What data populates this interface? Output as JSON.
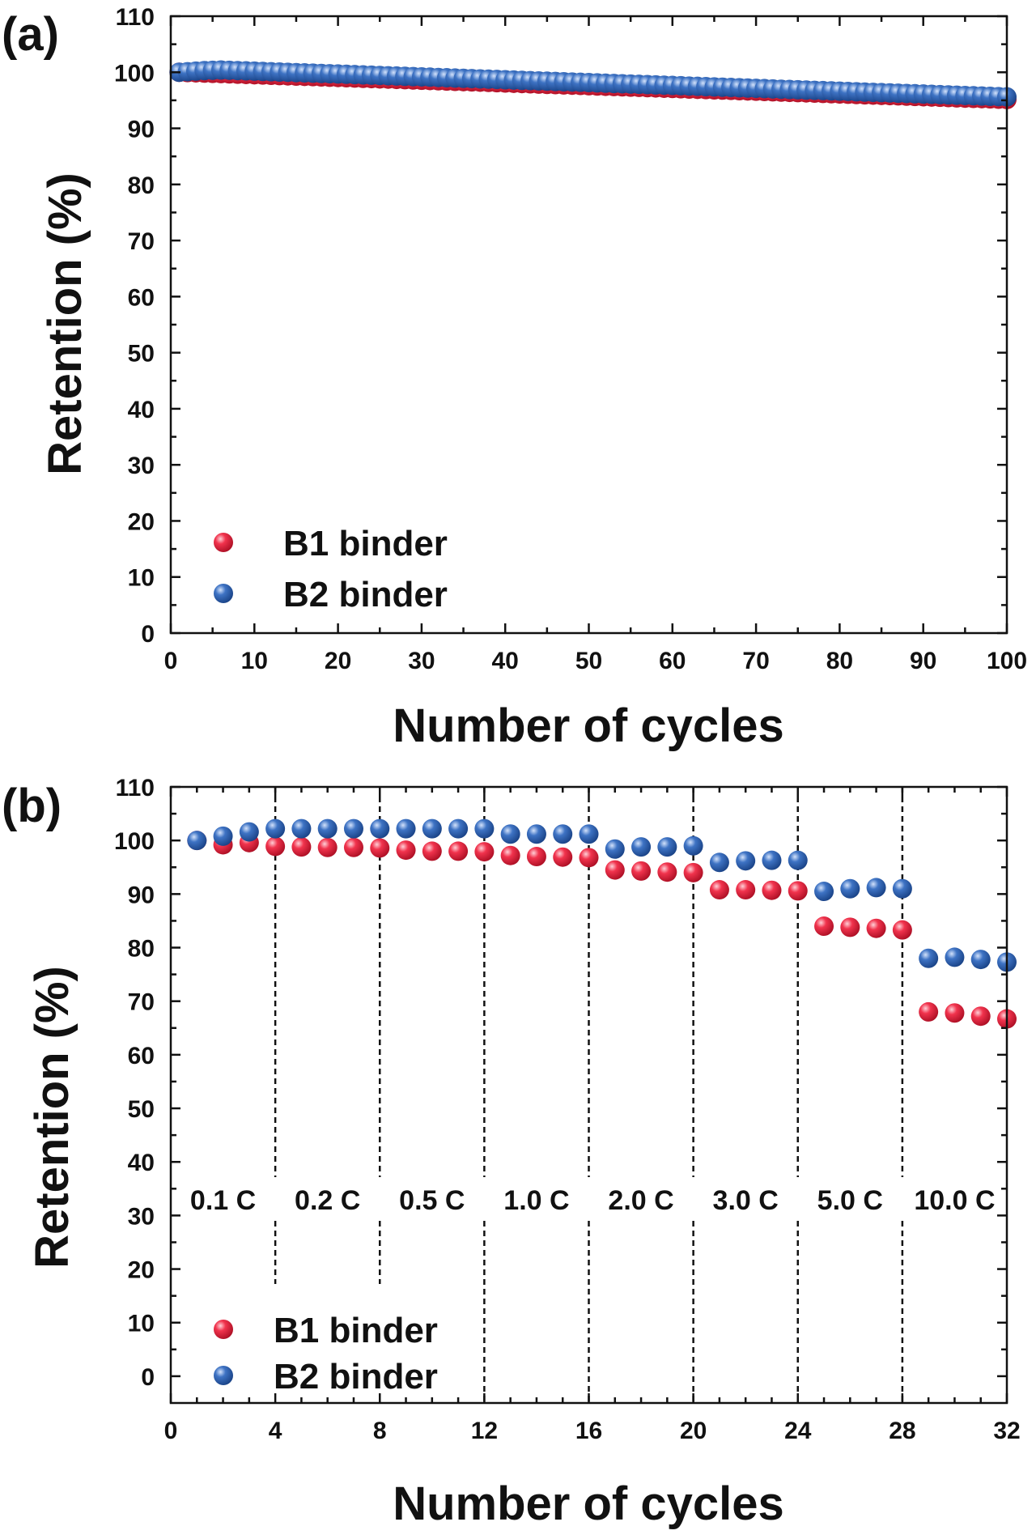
{
  "chart_data": [
    {
      "type": "scatter",
      "panel_label": "(a)",
      "xlabel": "Number of cycles",
      "ylabel": "Retention (%)",
      "xlim": [
        0,
        100
      ],
      "ylim": [
        0,
        110
      ],
      "x_ticks": [
        0,
        10,
        20,
        30,
        40,
        50,
        60,
        70,
        80,
        90,
        100
      ],
      "y_ticks": [
        0,
        10,
        20,
        30,
        40,
        50,
        60,
        70,
        80,
        90,
        100,
        110
      ],
      "legend": "bottom-left",
      "grid": false,
      "series": [
        {
          "name": "B1 binder",
          "color": "#e8253f",
          "x": [
            1,
            2,
            3,
            4,
            5,
            6,
            7,
            8,
            9,
            10,
            11,
            12,
            13,
            14,
            15,
            16,
            17,
            18,
            19,
            20,
            21,
            22,
            23,
            24,
            25,
            26,
            27,
            28,
            29,
            30,
            31,
            32,
            33,
            34,
            35,
            36,
            37,
            38,
            39,
            40,
            41,
            42,
            43,
            44,
            45,
            46,
            47,
            48,
            49,
            50,
            51,
            52,
            53,
            54,
            55,
            56,
            57,
            58,
            59,
            60,
            61,
            62,
            63,
            64,
            65,
            66,
            67,
            68,
            69,
            70,
            71,
            72,
            73,
            74,
            75,
            76,
            77,
            78,
            79,
            80,
            81,
            82,
            83,
            84,
            85,
            86,
            87,
            88,
            89,
            90,
            91,
            92,
            93,
            94,
            95,
            96,
            97,
            98,
            99,
            100
          ],
          "y": [
            100,
            99.95,
            99.9,
            99.85,
            99.8,
            99.76,
            99.71,
            99.66,
            99.61,
            99.56,
            99.51,
            99.46,
            99.41,
            99.36,
            99.31,
            99.27,
            99.22,
            99.17,
            99.12,
            99.07,
            99.02,
            98.97,
            98.92,
            98.87,
            98.82,
            98.78,
            98.73,
            98.68,
            98.63,
            98.58,
            98.53,
            98.48,
            98.43,
            98.38,
            98.33,
            98.29,
            98.24,
            98.19,
            98.14,
            98.09,
            98.04,
            97.99,
            97.94,
            97.89,
            97.84,
            97.8,
            97.75,
            97.7,
            97.65,
            97.6,
            97.55,
            97.5,
            97.45,
            97.4,
            97.35,
            97.31,
            97.26,
            97.21,
            97.16,
            97.11,
            97.06,
            97.01,
            96.96,
            96.91,
            96.86,
            96.82,
            96.77,
            96.72,
            96.67,
            96.62,
            96.57,
            96.52,
            96.47,
            96.42,
            96.37,
            96.33,
            96.28,
            96.23,
            96.18,
            96.13,
            96.08,
            96.03,
            95.98,
            95.93,
            95.88,
            95.84,
            95.79,
            95.74,
            95.69,
            95.64,
            95.59,
            95.54,
            95.49,
            95.44,
            95.39,
            95.35,
            95.3,
            95.25,
            95.2,
            95.15
          ]
        },
        {
          "name": "B2 binder",
          "color": "#2f65b4",
          "x": [
            1,
            2,
            3,
            4,
            5,
            6,
            7,
            8,
            9,
            10,
            11,
            12,
            13,
            14,
            15,
            16,
            17,
            18,
            19,
            20,
            21,
            22,
            23,
            24,
            25,
            26,
            27,
            28,
            29,
            30,
            31,
            32,
            33,
            34,
            35,
            36,
            37,
            38,
            39,
            40,
            41,
            42,
            43,
            44,
            45,
            46,
            47,
            48,
            49,
            50,
            51,
            52,
            53,
            54,
            55,
            56,
            57,
            58,
            59,
            60,
            61,
            62,
            63,
            64,
            65,
            66,
            67,
            68,
            69,
            70,
            71,
            72,
            73,
            74,
            75,
            76,
            77,
            78,
            79,
            80,
            81,
            82,
            83,
            84,
            85,
            86,
            87,
            88,
            89,
            90,
            91,
            92,
            93,
            94,
            95,
            96,
            97,
            98,
            99,
            100
          ],
          "y": [
            100,
            100.1,
            100.2,
            100.3,
            100.35,
            100.4,
            100.35,
            100.3,
            100.25,
            100.2,
            100.15,
            100.09,
            100.04,
            99.99,
            99.94,
            99.89,
            99.84,
            99.79,
            99.74,
            99.69,
            99.64,
            99.58,
            99.53,
            99.48,
            99.43,
            99.38,
            99.33,
            99.28,
            99.23,
            99.18,
            99.13,
            99.07,
            99.02,
            98.97,
            98.92,
            98.87,
            98.82,
            98.77,
            98.72,
            98.67,
            98.62,
            98.56,
            98.51,
            98.46,
            98.41,
            98.36,
            98.31,
            98.26,
            98.21,
            98.16,
            98.11,
            98.05,
            98,
            97.95,
            97.9,
            97.85,
            97.8,
            97.75,
            97.7,
            97.65,
            97.6,
            97.54,
            97.49,
            97.44,
            97.39,
            97.34,
            97.29,
            97.24,
            97.19,
            97.14,
            97.09,
            97.03,
            96.98,
            96.93,
            96.88,
            96.83,
            96.78,
            96.73,
            96.68,
            96.63,
            96.58,
            96.52,
            96.47,
            96.42,
            96.37,
            96.32,
            96.27,
            96.22,
            96.17,
            96.12,
            96.07,
            96.01,
            95.96,
            95.91,
            95.86,
            95.81,
            95.76,
            95.71,
            95.66,
            95.61
          ]
        }
      ]
    },
    {
      "type": "scatter",
      "panel_label": "(b)",
      "xlabel": "Number of cycles",
      "ylabel": "Retention (%)",
      "xlim": [
        0,
        32
      ],
      "ylim": [
        -5,
        110
      ],
      "x_ticks": [
        0,
        4,
        8,
        12,
        16,
        20,
        24,
        28,
        32
      ],
      "y_ticks": [
        0,
        10,
        20,
        30,
        40,
        50,
        60,
        70,
        80,
        90,
        100,
        110
      ],
      "legend": "bottom-left",
      "grid": false,
      "rate_dividers": [
        4,
        8,
        12,
        16,
        20,
        24,
        28
      ],
      "rate_labels": [
        "0.1 C",
        "0.2 C",
        "0.5 C",
        "1.0 C",
        "2.0 C",
        "3.0 C",
        "5.0 C",
        "10.0 C"
      ],
      "series": [
        {
          "name": "B1 binder",
          "color": "#e8253f",
          "x": [
            1,
            2,
            3,
            4,
            5,
            6,
            7,
            8,
            9,
            10,
            11,
            12,
            13,
            14,
            15,
            16,
            17,
            18,
            19,
            20,
            21,
            22,
            23,
            24,
            25,
            26,
            27,
            28,
            29,
            30,
            31,
            32
          ],
          "y": [
            100,
            99.2,
            99.6,
            98.9,
            98.8,
            98.7,
            98.7,
            98.6,
            98.2,
            98,
            98,
            97.9,
            97.2,
            97,
            96.9,
            96.8,
            94.5,
            94.3,
            94.1,
            94,
            90.8,
            90.8,
            90.7,
            90.6,
            84,
            83.8,
            83.6,
            83.3,
            68,
            67.8,
            67.2,
            66.7
          ]
        },
        {
          "name": "B2 binder",
          "color": "#2f65b4",
          "x": [
            1,
            2,
            3,
            4,
            5,
            6,
            7,
            8,
            9,
            10,
            11,
            12,
            13,
            14,
            15,
            16,
            17,
            18,
            19,
            20,
            21,
            22,
            23,
            24,
            25,
            26,
            27,
            28,
            29,
            30,
            31,
            32
          ],
          "y": [
            100,
            100.8,
            101.6,
            102.2,
            102.2,
            102.2,
            102.2,
            102.2,
            102.2,
            102.2,
            102.2,
            102.2,
            101.2,
            101.2,
            101.2,
            101.2,
            98.4,
            98.8,
            98.8,
            99,
            95.9,
            96.2,
            96.3,
            96.3,
            90.5,
            91,
            91.2,
            91,
            78,
            78.2,
            77.8,
            77.3
          ]
        }
      ]
    }
  ]
}
